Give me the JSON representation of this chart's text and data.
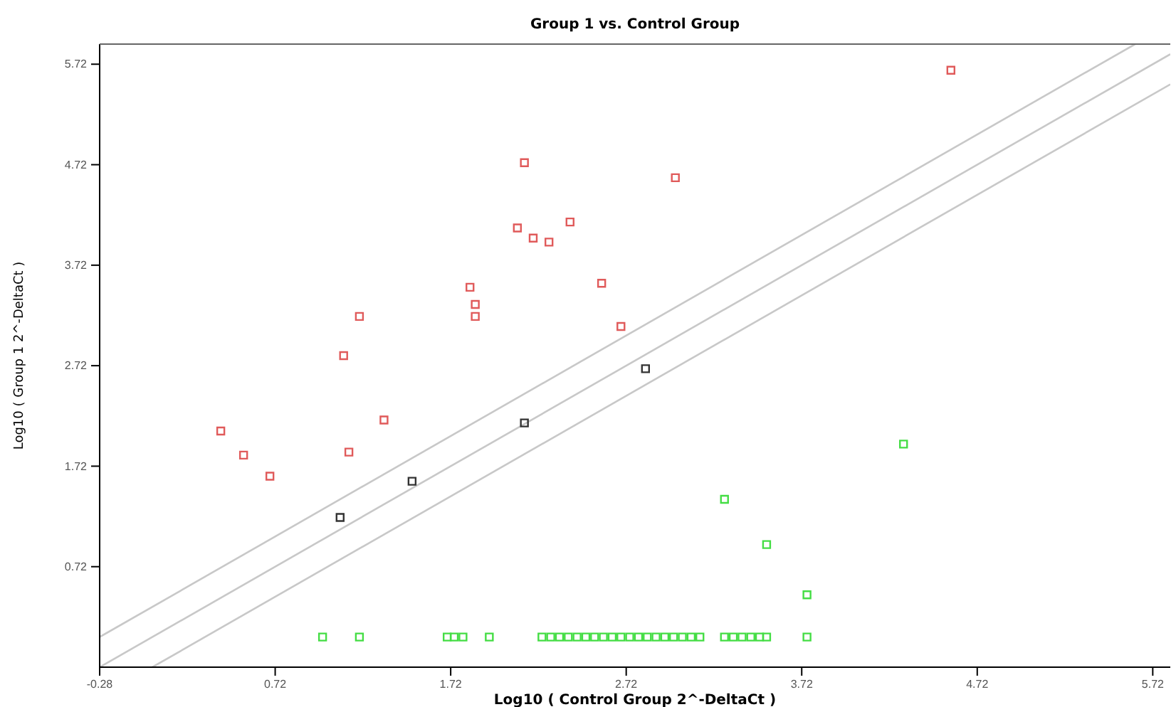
{
  "chart_data": {
    "type": "scatter",
    "title": "Group 1 vs. Control Group",
    "xlabel": "Log10 ( Control Group 2^-DeltaCt )",
    "ylabel": "Log10 ( Group 1 2^-DeltaCt )",
    "xlim": [
      -0.28,
      5.82
    ],
    "ylim": [
      -0.28,
      5.92
    ],
    "xticks": [
      -0.28,
      0.72,
      1.72,
      2.72,
      3.72,
      4.72,
      5.72
    ],
    "yticks": [
      0.72,
      1.72,
      2.72,
      3.72,
      4.72,
      5.72
    ],
    "grid": false,
    "marker": "square",
    "series": [
      {
        "type": "line",
        "marker": "none",
        "color": "#c8c8c8",
        "x": [
          -0.28,
          5.62
        ],
        "values": [
          0.02,
          5.92
        ]
      },
      {
        "type": "line",
        "marker": "none",
        "color": "#c8c8c8",
        "x": [
          -0.28,
          5.82
        ],
        "values": [
          -0.28,
          5.82
        ]
      },
      {
        "type": "line",
        "marker": "none",
        "color": "#c8c8c8",
        "x": [
          0.02,
          5.82
        ],
        "values": [
          -0.28,
          5.52
        ]
      },
      {
        "color": "#e05a5a",
        "x": [
          0.41,
          0.54,
          0.69,
          1.11,
          1.2,
          1.14,
          1.34,
          1.83,
          1.86,
          1.86,
          2.1,
          2.14,
          2.19,
          2.28,
          2.4,
          2.58,
          2.69,
          3.0,
          4.57
        ],
        "values": [
          2.07,
          1.83,
          1.62,
          2.82,
          3.21,
          1.86,
          2.18,
          3.5,
          3.33,
          3.21,
          4.09,
          4.74,
          3.99,
          3.95,
          4.15,
          3.54,
          3.11,
          4.59,
          5.66
        ]
      },
      {
        "color": "#333333",
        "x": [
          1.09,
          1.5,
          2.14,
          2.83
        ],
        "values": [
          1.21,
          1.57,
          2.15,
          2.69
        ]
      },
      {
        "color": "#44dd44",
        "x": [
          3.28,
          3.52,
          3.75,
          4.3,
          0.99,
          1.2,
          1.7,
          1.74,
          1.79,
          1.94,
          2.24,
          2.29,
          2.34,
          2.39,
          2.44,
          2.49,
          2.54,
          2.59,
          2.64,
          2.69,
          2.74,
          2.79,
          2.84,
          2.89,
          2.94,
          2.99,
          3.04,
          3.09,
          3.14,
          3.28,
          3.33,
          3.38,
          3.43,
          3.48,
          3.52,
          3.75
        ],
        "values": [
          1.39,
          0.94,
          0.44,
          1.94,
          0.02,
          0.02,
          0.02,
          0.02,
          0.02,
          0.02,
          0.02,
          0.02,
          0.02,
          0.02,
          0.02,
          0.02,
          0.02,
          0.02,
          0.02,
          0.02,
          0.02,
          0.02,
          0.02,
          0.02,
          0.02,
          0.02,
          0.02,
          0.02,
          0.02,
          0.02,
          0.02,
          0.02,
          0.02,
          0.02,
          0.02,
          0.02
        ]
      }
    ]
  }
}
